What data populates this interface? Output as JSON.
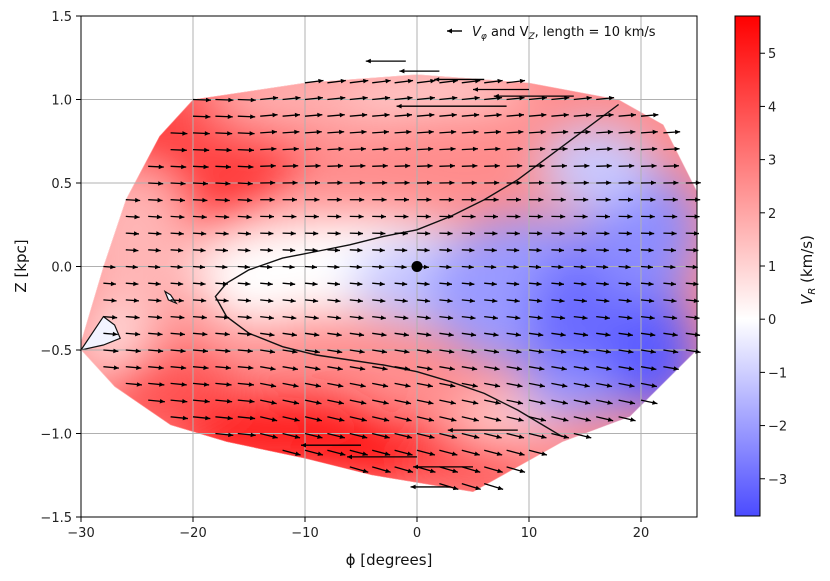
{
  "chart_data": {
    "type": "quiver",
    "xlabel": "ϕ [degrees]",
    "ylabel": "Z [kpc]",
    "xlim": [
      -30,
      25
    ],
    "ylim": [
      -1.5,
      1.5
    ],
    "x_ticks": [
      "−30",
      "−20",
      "−10",
      "0",
      "10",
      "20"
    ],
    "y_ticks": [
      "−1.5",
      "−1.0",
      "−0.5",
      "0.0",
      "0.5",
      "1.0",
      "1.5"
    ],
    "grid": true,
    "quiver_key": {
      "prefix": "V",
      "sub1": "φ",
      "mid": " and V",
      "sub2": "Z",
      "suffix": ", length = 10 km/s",
      "location": "top-right"
    },
    "colorbar": {
      "label_main": "V",
      "label_sub": "R",
      "label_unit": " (km/s)",
      "range": [
        -3.7,
        5.7
      ],
      "ticks": [
        "5",
        "4",
        "3",
        "2",
        "1",
        "0",
        "−1",
        "−2",
        "−3"
      ],
      "colormap": "bwr",
      "low_color": "#4b4bff",
      "mid_color": "#ffffff",
      "high_color": "#ff0000"
    },
    "highlight_point": {
      "x": 0,
      "y": 0
    },
    "zero_contour": [
      [
        18,
        0.97
      ],
      [
        15,
        0.82
      ],
      [
        12,
        0.67
      ],
      [
        9,
        0.52
      ],
      [
        6,
        0.4
      ],
      [
        3,
        0.3
      ],
      [
        0,
        0.22
      ],
      [
        -3,
        0.18
      ],
      [
        -6,
        0.13
      ],
      [
        -9,
        0.09
      ],
      [
        -12,
        0.05
      ],
      [
        -15,
        -0.02
      ],
      [
        -17,
        -0.1
      ],
      [
        -18,
        -0.18
      ],
      [
        -17,
        -0.3
      ],
      [
        -15,
        -0.4
      ],
      [
        -12,
        -0.48
      ],
      [
        -9,
        -0.53
      ],
      [
        -6,
        -0.56
      ],
      [
        -3,
        -0.59
      ],
      [
        0,
        -0.63
      ],
      [
        3,
        -0.69
      ],
      [
        6,
        -0.76
      ],
      [
        9,
        -0.86
      ],
      [
        11,
        -0.94
      ],
      [
        13,
        -1.02
      ]
    ],
    "hull": [
      [
        -30,
        -0.5
      ],
      [
        -27,
        -0.72
      ],
      [
        -22,
        -0.95
      ],
      [
        -17,
        -1.05
      ],
      [
        -10,
        -1.15
      ],
      [
        -4,
        -1.25
      ],
      [
        5,
        -1.35
      ],
      [
        13,
        -1.05
      ],
      [
        19,
        -0.9
      ],
      [
        25,
        -0.5
      ],
      [
        25,
        0.45
      ],
      [
        22,
        0.85
      ],
      [
        18,
        1.0
      ],
      [
        10,
        1.1
      ],
      [
        0,
        1.15
      ],
      [
        -10,
        1.1
      ],
      [
        -20,
        1.0
      ],
      [
        -23,
        0.78
      ],
      [
        -26,
        0.4
      ],
      [
        -28,
        0.0
      ],
      [
        -30,
        -0.45
      ]
    ],
    "small_patches": [
      {
        "points": [
          [
            -30,
            -0.5
          ],
          [
            -28,
            -0.3
          ],
          [
            -27,
            -0.35
          ],
          [
            -26.5,
            -0.43
          ],
          [
            -28,
            -0.47
          ]
        ],
        "fill": "#f2f4ff"
      },
      {
        "points": [
          [
            -22.5,
            -0.15
          ],
          [
            -22.2,
            -0.2
          ],
          [
            -21.5,
            -0.22
          ],
          [
            -22,
            -0.17
          ]
        ],
        "fill": "#f6f6ff"
      }
    ]
  }
}
